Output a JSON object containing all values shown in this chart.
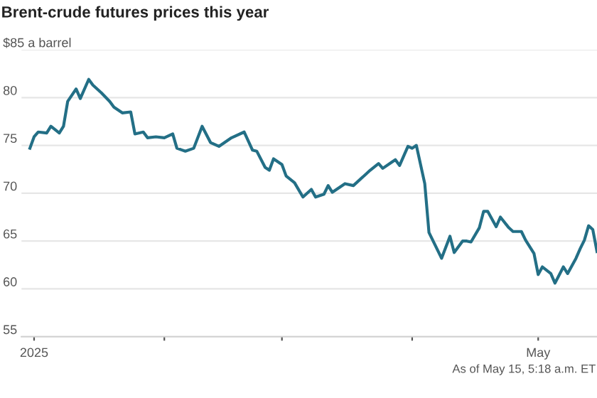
{
  "chart_data": {
    "type": "line",
    "title": "Brent-crude futures prices this year",
    "annotations": [
      "As of May 15, 5:18 a.m. ET"
    ],
    "x": [
      "2024-12-31",
      "2025-01-01",
      "2025-01-02",
      "2025-01-04",
      "2025-01-05",
      "2025-01-07",
      "2025-01-08",
      "2025-01-09",
      "2025-01-11",
      "2025-01-12",
      "2025-01-14",
      "2025-01-15",
      "2025-01-17",
      "2025-01-19",
      "2025-01-20",
      "2025-01-22",
      "2025-01-24",
      "2025-01-25",
      "2025-01-27",
      "2025-01-28",
      "2025-01-30",
      "2025-02-01",
      "2025-02-03",
      "2025-02-04",
      "2025-02-06",
      "2025-02-08",
      "2025-02-10",
      "2025-02-12",
      "2025-02-14",
      "2025-02-17",
      "2025-02-20",
      "2025-02-22",
      "2025-02-23",
      "2025-02-25",
      "2025-02-26",
      "2025-02-27",
      "2025-03-01",
      "2025-03-02",
      "2025-03-04",
      "2025-03-06",
      "2025-03-08",
      "2025-03-09",
      "2025-03-11",
      "2025-03-12",
      "2025-03-13",
      "2025-03-16",
      "2025-03-18",
      "2025-03-21",
      "2025-03-22",
      "2025-03-24",
      "2025-03-25",
      "2025-03-27",
      "2025-03-28",
      "2025-03-29",
      "2025-03-31",
      "2025-04-01",
      "2025-04-02",
      "2025-04-04",
      "2025-04-05",
      "2025-04-08",
      "2025-04-10",
      "2025-04-11",
      "2025-04-13",
      "2025-04-14",
      "2025-04-15",
      "2025-04-17",
      "2025-04-18",
      "2025-04-19",
      "2025-04-21",
      "2025-04-22",
      "2025-04-24",
      "2025-04-25",
      "2025-04-27",
      "2025-04-28",
      "2025-04-30",
      "2025-05-01",
      "2025-05-02",
      "2025-05-04",
      "2025-05-05",
      "2025-05-07",
      "2025-05-08",
      "2025-05-10",
      "2025-05-11",
      "2025-05-12",
      "2025-05-13",
      "2025-05-14",
      "2025-05-15"
    ],
    "series": [
      {
        "color": "#236f86",
        "values": [
          74.7,
          75.9,
          76.4,
          76.3,
          77.0,
          76.3,
          77.0,
          79.6,
          80.9,
          79.9,
          81.9,
          81.3,
          80.5,
          79.6,
          79.0,
          78.4,
          78.5,
          76.2,
          76.4,
          75.8,
          75.9,
          75.8,
          76.2,
          74.7,
          74.4,
          74.7,
          77.0,
          75.3,
          74.9,
          75.8,
          76.4,
          74.5,
          74.4,
          72.7,
          72.4,
          73.6,
          73.0,
          71.8,
          71.1,
          69.6,
          70.4,
          69.6,
          69.9,
          70.8,
          70.1,
          71.0,
          70.8,
          72.0,
          72.4,
          73.1,
          72.6,
          73.2,
          73.5,
          72.9,
          74.9,
          74.7,
          75.0,
          71.0,
          65.9,
          63.2,
          65.5,
          63.8,
          65.0,
          65.0,
          64.9,
          66.4,
          68.1,
          68.1,
          66.5,
          67.5,
          66.4,
          66.0,
          66.0,
          65.1,
          63.7,
          61.5,
          62.3,
          61.6,
          60.6,
          62.3,
          61.6,
          63.2,
          64.2,
          65.1,
          66.6,
          66.2,
          63.9
        ]
      }
    ],
    "xlim": [
      "2024-12-29",
      "2025-05-15"
    ],
    "xticks": [
      {
        "value": "2025-01-01",
        "label": "2025"
      },
      {
        "value": "2025-02-01",
        "label": null
      },
      {
        "value": "2025-03-01",
        "label": null
      },
      {
        "value": "2025-04-01",
        "label": null
      },
      {
        "value": "2025-05-01",
        "label": "May"
      }
    ],
    "ylim": [
      55,
      85
    ],
    "yticks": [
      55,
      60,
      65,
      70,
      75,
      80,
      {
        "value": 85,
        "label": "$85 a barrel"
      }
    ],
    "grid": "y",
    "marker": "none",
    "line_style": "solid"
  }
}
